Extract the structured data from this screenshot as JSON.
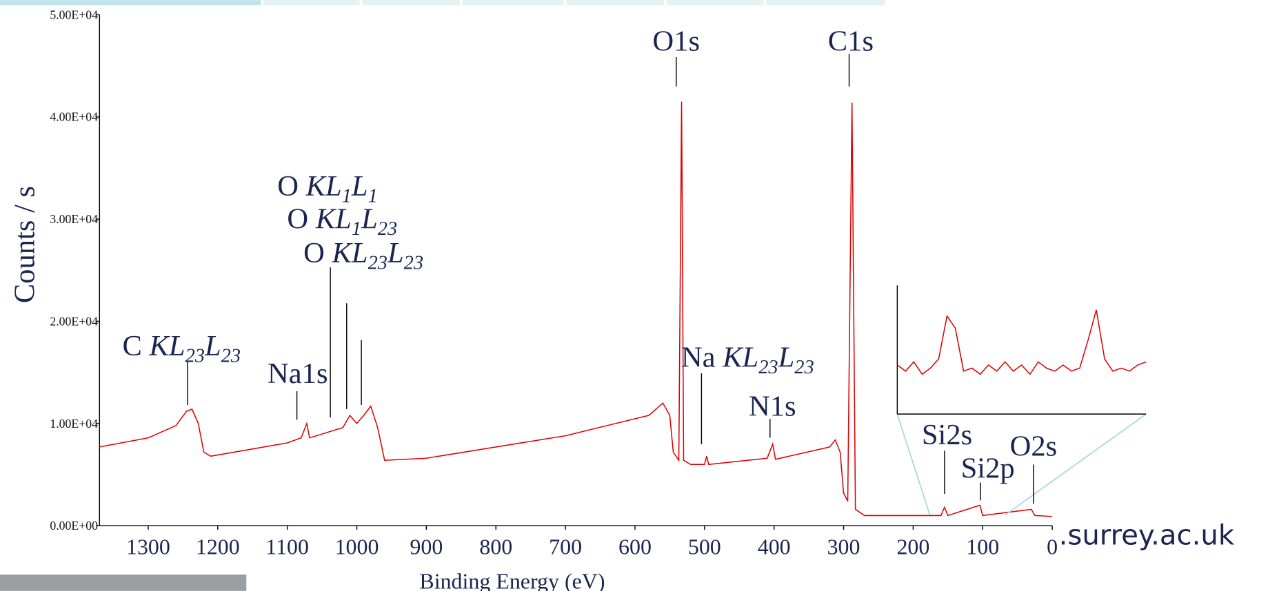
{
  "chart_data": [
    {
      "type": "line",
      "x_label": "Binding Energy (eV)",
      "y_label": "Counts / s",
      "color": "#e00000",
      "x": [
        1370,
        1300,
        1260,
        1245,
        1237,
        1228,
        1220,
        1210,
        1100,
        1080,
        1072,
        1068,
        1020,
        1010,
        1000,
        990,
        980,
        970,
        960,
        900,
        700,
        580,
        560,
        550,
        545,
        537,
        533,
        530,
        520,
        500,
        497,
        494,
        410,
        402,
        398,
        320,
        312,
        305,
        300,
        294,
        288,
        283,
        270,
        160,
        155,
        150,
        104,
        100,
        30,
        25,
        0
      ],
      "values": [
        7700,
        8600,
        9800,
        11200,
        11400,
        10000,
        7200,
        6800,
        8100,
        8600,
        10000,
        8600,
        9600,
        10800,
        10000,
        10800,
        11700,
        9600,
        6400,
        6600,
        8800,
        10800,
        12000,
        10800,
        7200,
        6400,
        41500,
        6400,
        6000,
        6000,
        6800,
        6000,
        6600,
        8000,
        6500,
        7700,
        8400,
        7200,
        3200,
        2400,
        41400,
        1600,
        1000,
        1000,
        1800,
        1000,
        2000,
        1000,
        1600,
        1000,
        900
      ],
      "xlim": [
        1370,
        0
      ],
      "ylim": [
        0,
        50000
      ],
      "xticks": [
        1300,
        1200,
        1100,
        1000,
        900,
        800,
        700,
        600,
        500,
        400,
        300,
        200,
        100,
        0
      ],
      "yticks": [
        {
          "value": 0,
          "label": "0.00E+00"
        },
        {
          "value": 10000,
          "label": "1.00E+04"
        },
        {
          "value": 20000,
          "label": "2.00E+04"
        },
        {
          "value": 30000,
          "label": "3.00E+04"
        },
        {
          "value": 40000,
          "label": "4.00E+04"
        },
        {
          "value": 50000,
          "label": "5.00E+04"
        }
      ]
    },
    {
      "type": "line",
      "color": "#e00000",
      "x": [
        175,
        172,
        169,
        166,
        163,
        160,
        157,
        154,
        151,
        148,
        145,
        142,
        139,
        136,
        133,
        130,
        127,
        124,
        121,
        118,
        115,
        112,
        109,
        106,
        103,
        100,
        97,
        94,
        91,
        88,
        85
      ],
      "values": [
        1100,
        1000,
        1150,
        950,
        1050,
        1200,
        1900,
        1700,
        1000,
        1050,
        950,
        1100,
        1000,
        1150,
        1000,
        1100,
        950,
        1150,
        1050,
        1000,
        1100,
        1000,
        1050,
        1500,
        2000,
        1200,
        1000,
        1050,
        1000,
        1100,
        1150
      ],
      "xlim": [
        175,
        85
      ],
      "ylim": [
        300,
        2400
      ]
    }
  ],
  "annotations": [
    {
      "parts": [
        "O1s"
      ]
    },
    {
      "parts": [
        "C1s"
      ]
    },
    {
      "parts": [
        "O ",
        "KL",
        "1",
        "L",
        "1"
      ]
    },
    {
      "parts": [
        "O ",
        "KL",
        "1",
        "L",
        "23"
      ]
    },
    {
      "parts": [
        "O ",
        "KL",
        "23",
        "L",
        "23"
      ]
    },
    {
      "parts": [
        "C ",
        "KL",
        "23",
        "L",
        "23"
      ]
    },
    {
      "parts": [
        "Na1s"
      ]
    },
    {
      "parts": [
        "Na ",
        "KL",
        "23",
        "L",
        "23"
      ]
    },
    {
      "parts": [
        "N1s"
      ]
    },
    {
      "parts": [
        "Si2s"
      ]
    },
    {
      "parts": [
        "Si2p"
      ]
    },
    {
      "parts": [
        "O2s"
      ]
    }
  ],
  "website": ".surrey.ac.uk"
}
